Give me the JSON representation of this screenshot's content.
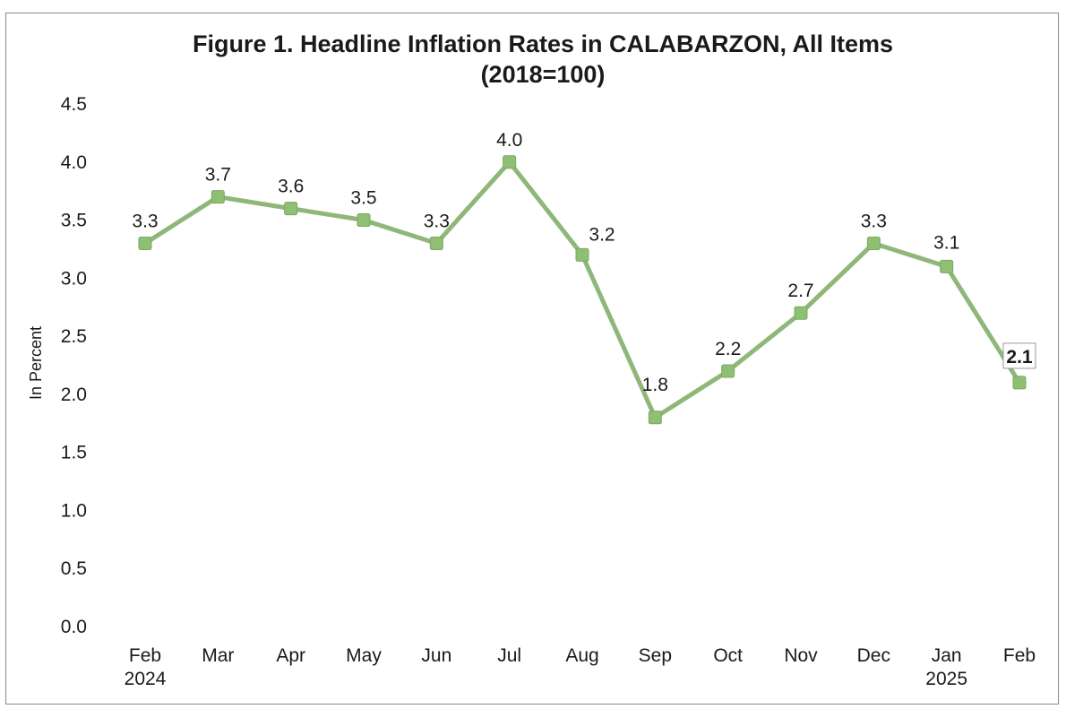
{
  "chart_data": {
    "type": "line",
    "title": "Figure 1. Headline Inflation Rates in CALABARZON, All Items",
    "subtitle": "(2018=100)",
    "xlabel": "",
    "ylabel": "In Percent",
    "ylim": [
      0.0,
      4.5
    ],
    "y_ticks": [
      "0.0",
      "0.5",
      "1.0",
      "1.5",
      "2.0",
      "2.5",
      "3.0",
      "3.5",
      "4.0",
      "4.5"
    ],
    "categories": [
      [
        "Feb",
        "2024"
      ],
      [
        "Mar"
      ],
      [
        "Apr"
      ],
      [
        "May"
      ],
      [
        "Jun"
      ],
      [
        "Jul"
      ],
      [
        "Aug"
      ],
      [
        "Sep"
      ],
      [
        "Oct"
      ],
      [
        "Nov"
      ],
      [
        "Dec"
      ],
      [
        "Jan",
        "2025"
      ],
      [
        "Feb"
      ]
    ],
    "series": [
      {
        "values": [
          3.3,
          3.7,
          3.6,
          3.5,
          3.3,
          4.0,
          3.2,
          1.8,
          2.2,
          2.7,
          3.3,
          3.1,
          2.1
        ],
        "labels": [
          "3.3",
          "3.7",
          "3.6",
          "3.5",
          "3.3",
          "4.0",
          "3.2",
          "1.8",
          "2.2",
          "2.7",
          "3.3",
          "3.1",
          "2.1"
        ],
        "color": "#8fb77a",
        "marker_color": "#8fbf73"
      }
    ],
    "grid": false,
    "legend": "none",
    "highlighted_label": "2.1"
  }
}
